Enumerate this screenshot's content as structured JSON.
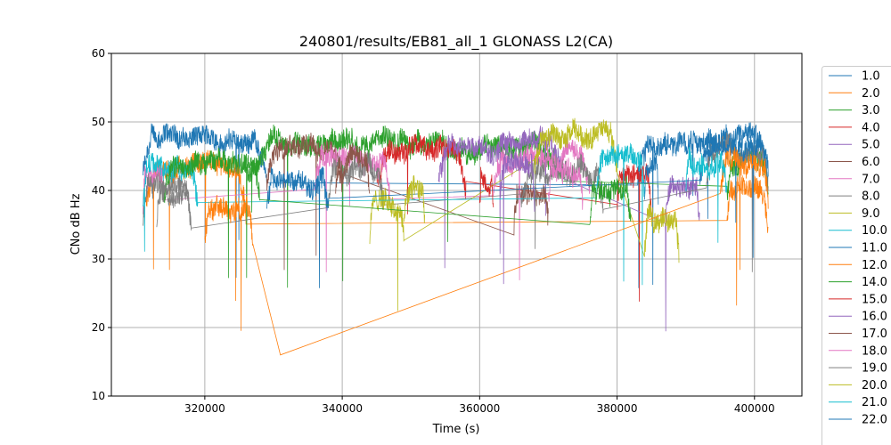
{
  "chart_data": {
    "type": "line",
    "title": "240801/results/EB81_all_1 GLONASS L2(CA)",
    "xlabel": "Time (s)",
    "ylabel": "CNo dB Hz",
    "xlim": [
      306400,
      406900
    ],
    "ylim": [
      10,
      60
    ],
    "xticks": [
      320000,
      340000,
      360000,
      380000,
      400000
    ],
    "yticks": [
      10,
      20,
      30,
      40,
      50,
      60
    ],
    "grid": true,
    "legend_position": "outside-right",
    "series": [
      {
        "name": "1.0",
        "color": "#1f77b4",
        "passes": [
          [
            311000,
            329000,
            47.5
          ],
          [
            383000,
            402000,
            47
          ]
        ]
      },
      {
        "name": "2.0",
        "color": "#ff7f0e",
        "passes": [
          [
            311500,
            326000,
            43
          ],
          [
            396000,
            402000,
            40
          ]
        ]
      },
      {
        "name": "3.0",
        "color": "#2ca02c",
        "passes": [
          [
            326000,
            372000,
            47
          ],
          [
            396000,
            402000,
            44
          ]
        ]
      },
      {
        "name": "4.0",
        "color": "#d62728",
        "passes": [
          [
            345000,
            358000,
            46
          ],
          [
            380000,
            385000,
            42
          ]
        ]
      },
      {
        "name": "5.0",
        "color": "#9467bd",
        "passes": [
          [
            354000,
            372000,
            47
          ],
          [
            387000,
            392000,
            40
          ]
        ]
      },
      {
        "name": "6.0",
        "color": "#8c564b",
        "passes": [
          [
            329000,
            340000,
            46
          ],
          [
            365000,
            370000,
            40
          ]
        ]
      },
      {
        "name": "7.0",
        "color": "#e377c2",
        "passes": [
          [
            311000,
            314000,
            42
          ],
          [
            336000,
            347000,
            45
          ],
          [
            362000,
            376000,
            45
          ]
        ]
      },
      {
        "name": "8.0",
        "color": "#7f7f7f",
        "passes": [
          [
            311000,
            318000,
            41
          ],
          [
            338000,
            346000,
            43
          ],
          [
            366000,
            378000,
            43
          ],
          [
            393000,
            402000,
            46
          ]
        ]
      },
      {
        "name": "9.0",
        "color": "#bcbd22",
        "passes": [
          [
            344000,
            349000,
            38
          ],
          [
            368000,
            380000,
            48
          ],
          [
            384000,
            389000,
            36
          ]
        ]
      },
      {
        "name": "10.0",
        "color": "#17becf",
        "passes": [
          [
            311000,
            319000,
            43
          ],
          [
            377000,
            384000,
            45
          ]
        ]
      },
      {
        "name": "11.0",
        "color": "#1f77b4",
        "passes": [
          [
            329000,
            338000,
            42
          ],
          [
            392000,
            402000,
            46
          ]
        ]
      },
      {
        "name": "12.0",
        "color": "#ff7f0e",
        "passes": [
          [
            320000,
            327000,
            37
          ],
          [
            331000,
            331000,
            16
          ],
          [
            395000,
            402000,
            44
          ]
        ]
      },
      {
        "name": "14.0",
        "color": "#2ca02c",
        "passes": [
          [
            314000,
            328000,
            44
          ],
          [
            376000,
            382000,
            41
          ]
        ]
      },
      {
        "name": "15.0",
        "color": "#d62728",
        "passes": [
          [
            360000,
            362000,
            42
          ]
        ]
      },
      {
        "name": "16.0",
        "color": "#9467bd",
        "passes": [
          [
            363000,
            368000,
            44
          ]
        ]
      },
      {
        "name": "17.0",
        "color": "#8c564b",
        "passes": [
          [
            339000,
            344000,
            44
          ]
        ]
      },
      {
        "name": "18.0",
        "color": "#e377c2",
        "passes": [
          [
            370000,
            375000,
            43
          ]
        ]
      },
      {
        "name": "19.0",
        "color": "#7f7f7f",
        "passes": [
          [
            313000,
            318000,
            40
          ]
        ]
      },
      {
        "name": "20.0",
        "color": "#bcbd22",
        "passes": [
          [
            349000,
            352000,
            40
          ]
        ]
      },
      {
        "name": "21.0",
        "color": "#17becf",
        "passes": [
          [
            390000,
            396000,
            44
          ]
        ]
      },
      {
        "name": "22.0",
        "color": "#1f77b4",
        "passes": [
          [
            384000,
            386000,
            44
          ]
        ]
      }
    ]
  }
}
